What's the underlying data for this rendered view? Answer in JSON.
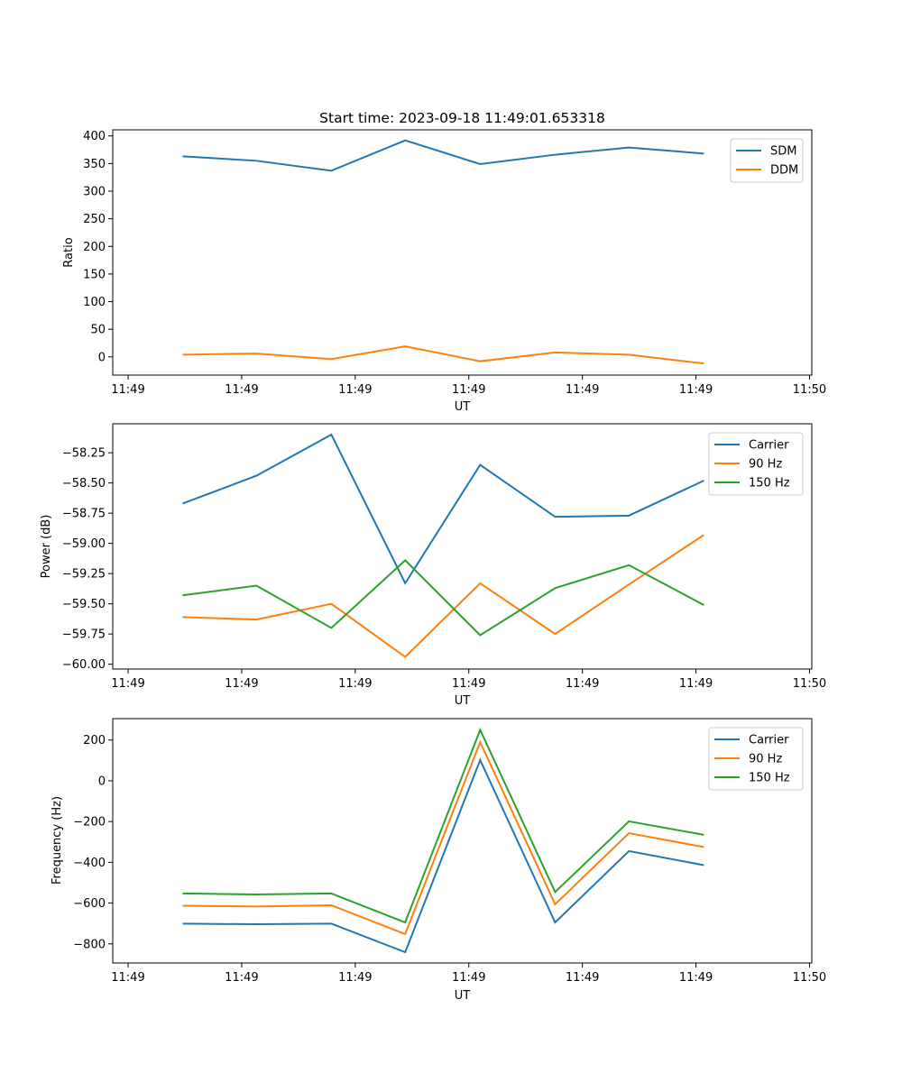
{
  "chart_data": [
    {
      "type": "line",
      "title": "Start time: 2023-09-18 11:49:01.653318",
      "xlabel": "UT",
      "ylabel": "Ratio",
      "x_unit": "seconds after 11:49:00",
      "x": [
        4.8,
        11.3,
        17.9,
        24.4,
        31.0,
        37.6,
        44.1,
        50.7
      ],
      "xlim": [
        -1.35,
        60.2
      ],
      "xticks": [
        0,
        10,
        20,
        30,
        40,
        50,
        60
      ],
      "xtick_labels": [
        "11:49",
        "11:49",
        "11:49",
        "11:49",
        "11:49",
        "11:49",
        "11:50"
      ],
      "ylim": [
        -33,
        411
      ],
      "yticks": [
        0,
        50,
        100,
        150,
        200,
        250,
        300,
        350,
        400
      ],
      "ytick_labels": [
        "0",
        "50",
        "100",
        "150",
        "200",
        "250",
        "300",
        "350",
        "400"
      ],
      "legend_position": "top-right",
      "grid": false,
      "series": [
        {
          "name": "SDM",
          "color": "#1f77b4",
          "values": [
            363,
            355,
            337,
            392,
            349,
            366,
            379,
            368
          ]
        },
        {
          "name": "DDM",
          "color": "#ff7f0e",
          "values": [
            4,
            6,
            -4,
            19,
            -8,
            8,
            4,
            -12
          ]
        }
      ]
    },
    {
      "type": "line",
      "title": "",
      "xlabel": "UT",
      "ylabel": "Power (dB)",
      "x_unit": "seconds after 11:49:00",
      "x": [
        4.8,
        11.3,
        17.9,
        24.4,
        31.0,
        37.6,
        44.1,
        50.7
      ],
      "xlim": [
        -1.35,
        60.2
      ],
      "xticks": [
        0,
        10,
        20,
        30,
        40,
        50,
        60
      ],
      "xtick_labels": [
        "11:49",
        "11:49",
        "11:49",
        "11:49",
        "11:49",
        "11:49",
        "11:50"
      ],
      "ylim": [
        -60.04,
        -58.01
      ],
      "yticks": [
        -60.0,
        -59.75,
        -59.5,
        -59.25,
        -59.0,
        -58.75,
        -58.5,
        -58.25
      ],
      "ytick_labels": [
        "−60.00",
        "−59.75",
        "−59.50",
        "−59.25",
        "−59.00",
        "−58.75",
        "−58.50",
        "−58.25"
      ],
      "legend_position": "top-right",
      "grid": false,
      "series": [
        {
          "name": "Carrier",
          "color": "#1f77b4",
          "values": [
            -58.67,
            -58.44,
            -58.1,
            -59.33,
            -58.35,
            -58.78,
            -58.77,
            -58.48
          ]
        },
        {
          "name": "90 Hz",
          "color": "#ff7f0e",
          "values": [
            -59.61,
            -59.63,
            -59.5,
            -59.94,
            -59.33,
            -59.75,
            -59.34,
            -58.93
          ]
        },
        {
          "name": "150 Hz",
          "color": "#2ca02c",
          "values": [
            -59.43,
            -59.35,
            -59.7,
            -59.14,
            -59.76,
            -59.37,
            -59.18,
            -59.51
          ]
        }
      ]
    },
    {
      "type": "line",
      "title": "",
      "xlabel": "UT",
      "ylabel": "Frequency (Hz)",
      "x_unit": "seconds after 11:49:00",
      "x": [
        4.8,
        11.3,
        17.9,
        24.4,
        31.0,
        37.6,
        44.1,
        50.7
      ],
      "xlim": [
        -1.35,
        60.2
      ],
      "xticks": [
        0,
        10,
        20,
        30,
        40,
        50,
        60
      ],
      "xtick_labels": [
        "11:49",
        "11:49",
        "11:49",
        "11:49",
        "11:49",
        "11:49",
        "11:50"
      ],
      "ylim": [
        -894,
        305
      ],
      "yticks": [
        -800,
        -600,
        -400,
        -200,
        0,
        200
      ],
      "ytick_labels": [
        "−800",
        "−600",
        "−400",
        "−200",
        "0",
        "200"
      ],
      "legend_position": "top-right",
      "grid": false,
      "series": [
        {
          "name": "Carrier",
          "color": "#1f77b4",
          "values": [
            -701,
            -704,
            -701,
            -841,
            102,
            -695,
            -345,
            -414
          ]
        },
        {
          "name": "90 Hz",
          "color": "#ff7f0e",
          "values": [
            -613,
            -617,
            -611,
            -752,
            190,
            -606,
            -257,
            -325
          ]
        },
        {
          "name": "150 Hz",
          "color": "#2ca02c",
          "values": [
            -553,
            -558,
            -553,
            -695,
            250,
            -546,
            -199,
            -265
          ]
        }
      ]
    }
  ]
}
